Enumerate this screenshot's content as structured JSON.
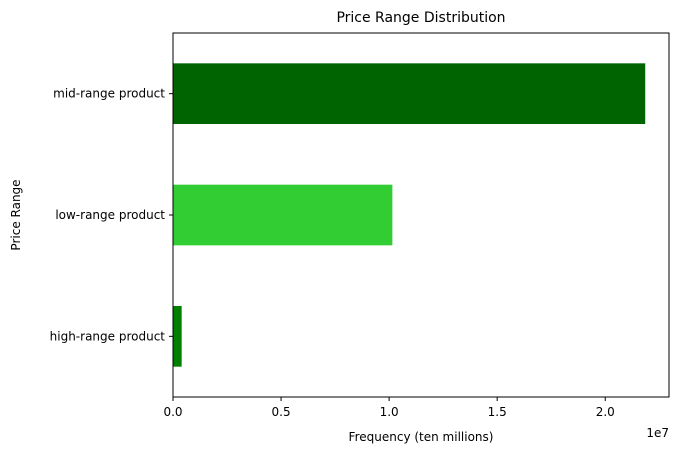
{
  "chart_data": {
    "type": "bar",
    "orientation": "horizontal",
    "title": "Price Range Distribution",
    "xlabel": "Frequency (ten millions)",
    "ylabel": "Price Range",
    "x_offset_label": "1e7",
    "categories": [
      "high-range product",
      "low-range product",
      "mid-range product"
    ],
    "values": [
      400000,
      10150000,
      21850000
    ],
    "colors": [
      "#008000",
      "#32CD32",
      "#006400"
    ],
    "xlim": [
      0,
      22950000
    ],
    "xticks": [
      0,
      5000000,
      10000000,
      15000000,
      20000000
    ],
    "xtick_labels": [
      "0.0",
      "0.5",
      "1.0",
      "1.5",
      "2.0"
    ],
    "grid": false,
    "legend": "none"
  }
}
